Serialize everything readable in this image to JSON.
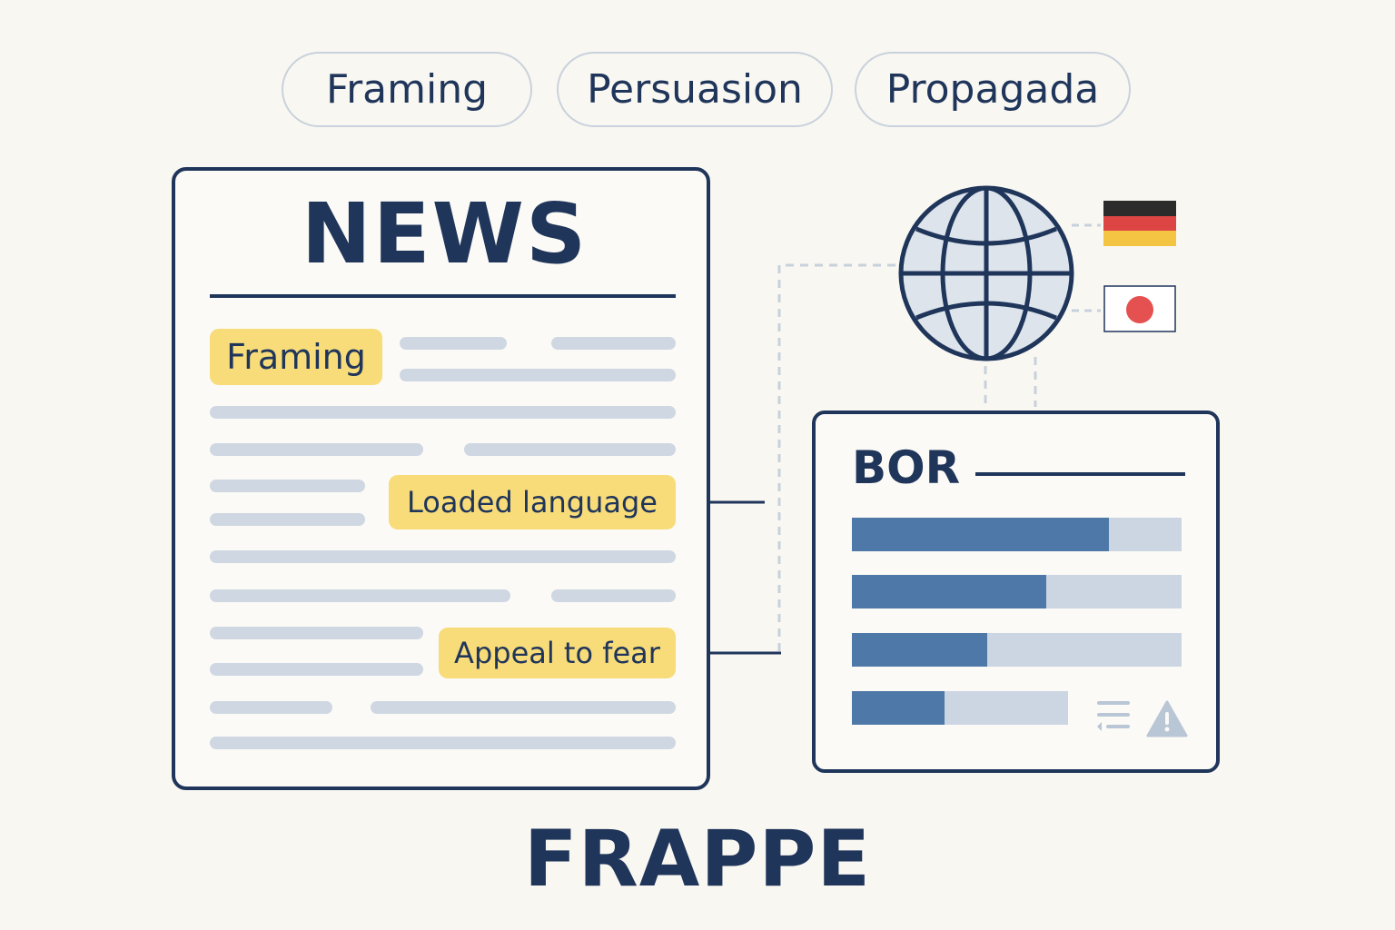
{
  "pills": [
    "Framing",
    "Persuasion",
    "Propagada"
  ],
  "news": {
    "title": "NEWS",
    "tags": [
      "Framing",
      "Loaded language",
      "Appeal to fear"
    ]
  },
  "result": {
    "title": "BOR",
    "bars": [
      0.78,
      0.59,
      0.41,
      0.43
    ],
    "icons": [
      "list-icon",
      "warning-icon"
    ]
  },
  "flags": [
    "germany-flag",
    "japan-flag"
  ],
  "footer": {
    "title": "FRAPPE"
  },
  "colors": {
    "background": "#f9f7f2",
    "navy": "#1f355a",
    "highlight": "#f8dc7a",
    "bar_fill": "#4e78a8",
    "bar_track": "#ccd6e2",
    "text_line": "#cfd7e2"
  }
}
